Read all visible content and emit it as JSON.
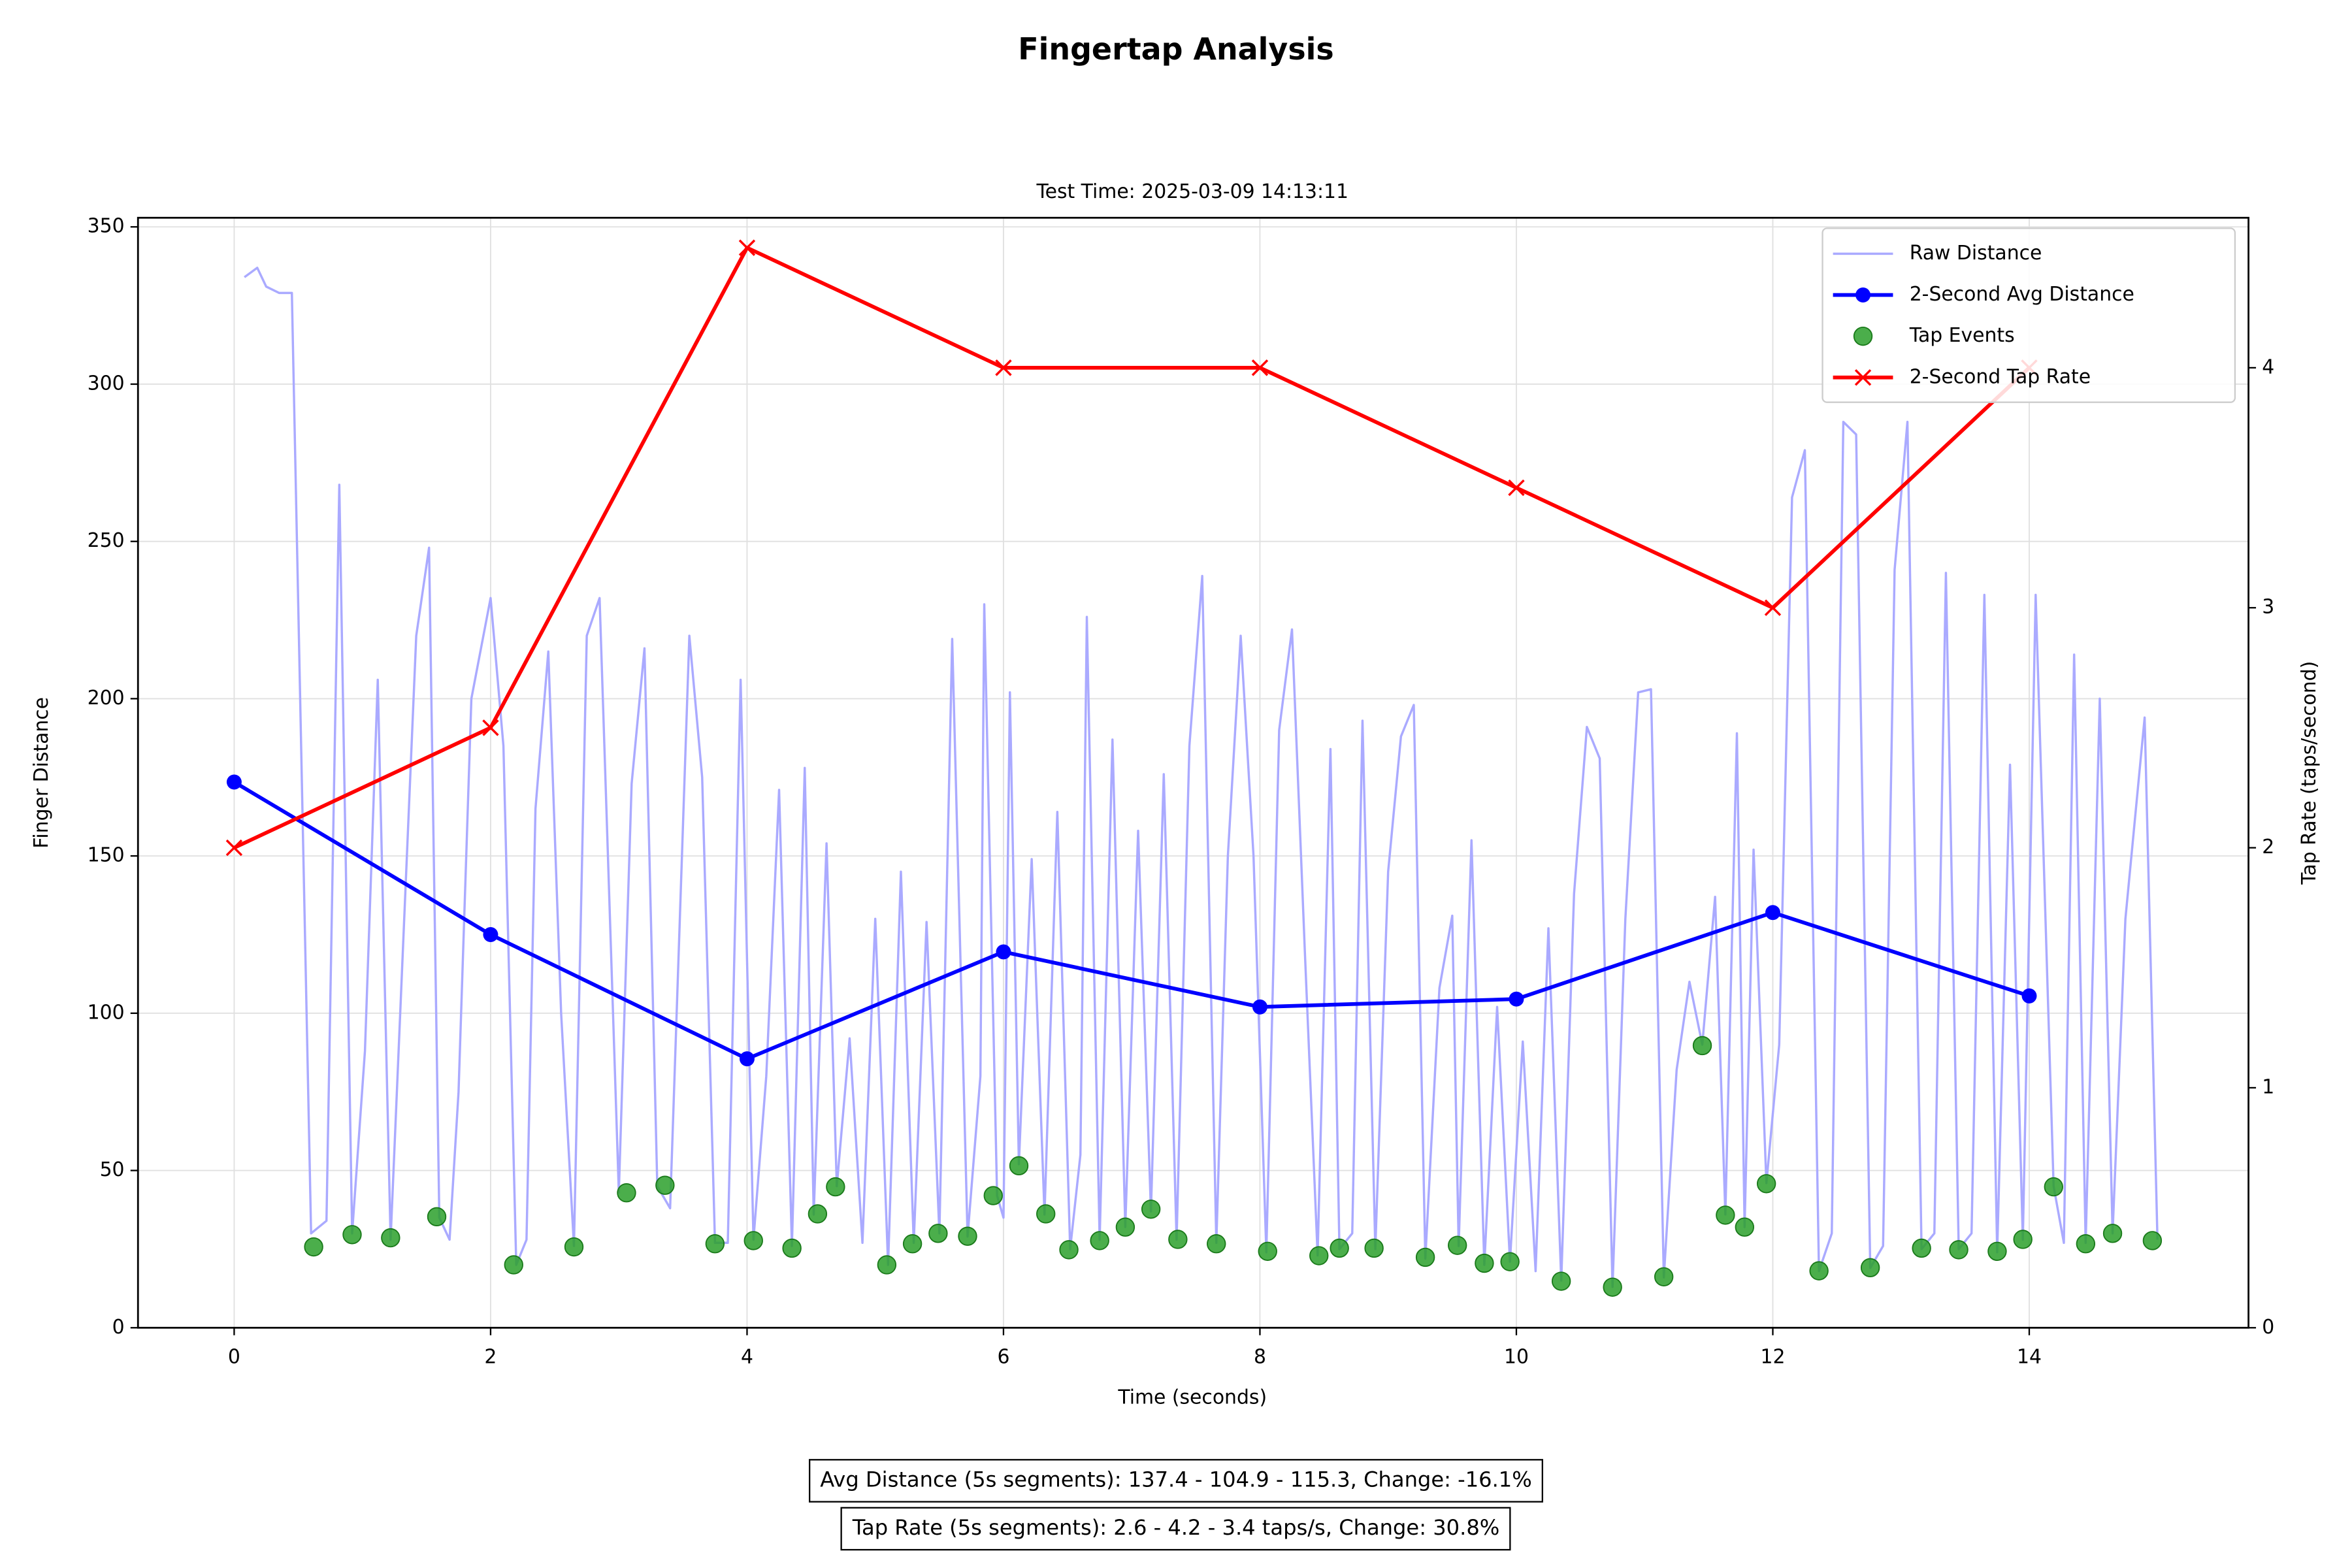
{
  "chart_data": {
    "type": "line",
    "title": "Fingertap Analysis",
    "subtitle": "Test Time: 2025-03-09 14:13:11",
    "xlabel": "Time (seconds)",
    "ylabel": "Finger Distance",
    "y2label": "Tap Rate (taps/second)",
    "xlim": [
      -0.75,
      15.71
    ],
    "xticks": [
      0,
      2,
      4,
      6,
      8,
      10,
      12,
      14
    ],
    "ylim": [
      0,
      352.9
    ],
    "yticks": [
      0,
      50,
      100,
      150,
      200,
      250,
      300,
      350
    ],
    "y2lim": [
      0,
      4.625
    ],
    "y2ticks": [
      0,
      1,
      2,
      3,
      4
    ],
    "ycolor": "#0000ff",
    "y2color": "#ff0000",
    "grid": true,
    "legend": "upper right",
    "series": [
      {
        "name": "Raw Distance",
        "style": "line",
        "color": "#aaaaff",
        "x": [
          0.08,
          0.18,
          0.25,
          0.35,
          0.45,
          0.6,
          0.72,
          0.82,
          0.92,
          1.02,
          1.12,
          1.22,
          1.42,
          1.52,
          1.6,
          1.68,
          1.75,
          1.85,
          2.0,
          2.1,
          2.2,
          2.28,
          2.35,
          2.45,
          2.55,
          2.65,
          2.75,
          2.85,
          3.0,
          3.1,
          3.2,
          3.3,
          3.4,
          3.55,
          3.65,
          3.75,
          3.85,
          3.95,
          4.05,
          4.15,
          4.25,
          4.35,
          4.45,
          4.52,
          4.62,
          4.7,
          4.8,
          4.9,
          5.0,
          5.1,
          5.2,
          5.3,
          5.4,
          5.5,
          5.6,
          5.72,
          5.82,
          5.85,
          5.95,
          6.0,
          6.05,
          6.12,
          6.22,
          6.32,
          6.42,
          6.52,
          6.6,
          6.65,
          6.75,
          6.85,
          6.95,
          7.05,
          7.15,
          7.25,
          7.35,
          7.45,
          7.55,
          7.66,
          7.75,
          7.85,
          7.95,
          8.05,
          8.15,
          8.25,
          8.35,
          8.45,
          8.55,
          8.62,
          8.72,
          8.8,
          8.9,
          9.0,
          9.1,
          9.2,
          9.29,
          9.4,
          9.5,
          9.55,
          9.65,
          9.75,
          9.85,
          9.95,
          10.05,
          10.15,
          10.25,
          10.35,
          10.45,
          10.55,
          10.65,
          10.75,
          10.85,
          10.95,
          11.05,
          11.15,
          11.25,
          11.35,
          11.45,
          11.55,
          11.63,
          11.72,
          11.78,
          11.85,
          11.95,
          12.05,
          12.15,
          12.25,
          12.36,
          12.46,
          12.55,
          12.65,
          12.76,
          12.86,
          12.95,
          13.05,
          13.16,
          13.26,
          13.35,
          13.45,
          13.55,
          13.65,
          13.75,
          13.85,
          13.95,
          14.05,
          14.19,
          14.27,
          14.35,
          14.44,
          14.55,
          14.65,
          14.75,
          14.9,
          15.0
        ],
        "values": [
          334,
          337,
          331,
          329,
          329,
          30,
          34,
          268,
          30,
          88,
          206,
          28,
          220,
          248,
          35,
          28,
          75,
          200,
          232,
          185,
          20,
          28,
          165,
          215,
          100,
          26,
          220,
          232,
          43,
          173,
          216,
          45,
          38,
          220,
          175,
          27,
          27,
          206,
          28,
          80,
          171,
          26,
          178,
          36,
          154,
          45,
          92,
          27,
          130,
          20,
          145,
          27,
          129,
          30,
          219,
          29,
          80,
          230,
          42,
          35,
          202,
          52,
          149,
          36,
          164,
          25,
          55,
          226,
          28,
          187,
          32,
          158,
          37,
          176,
          28,
          185,
          239,
          27,
          150,
          220,
          150,
          24,
          190,
          222,
          120,
          23,
          184,
          25,
          30,
          193,
          25,
          145,
          188,
          198,
          22,
          108,
          131,
          26,
          155,
          20,
          102,
          21,
          91,
          18,
          127,
          15,
          138,
          191,
          181,
          13,
          130,
          202,
          203,
          16,
          82,
          110,
          90,
          137,
          36,
          189,
          32,
          152,
          46,
          90,
          264,
          279,
          18,
          30,
          288,
          284,
          19,
          26,
          241,
          288,
          25,
          30,
          240,
          25,
          30,
          233,
          24,
          179,
          28,
          233,
          45,
          27,
          214,
          27,
          200,
          30,
          130,
          194,
          28
        ]
      },
      {
        "name": "2-Second Avg Distance",
        "style": "line-dot",
        "color": "#0000ff",
        "x": [
          0,
          2,
          4,
          6,
          8,
          10,
          12,
          14
        ],
        "values": [
          173.5,
          125,
          85.5,
          119.5,
          102,
          104.5,
          132,
          105.5
        ]
      },
      {
        "name": "Tap Events",
        "style": "scatter",
        "color": "#2ca02c",
        "x": [
          0.62,
          0.92,
          1.22,
          1.58,
          2.18,
          2.65,
          3.06,
          3.36,
          3.75,
          4.05,
          4.35,
          4.55,
          4.69,
          5.09,
          5.29,
          5.49,
          5.72,
          5.92,
          6.12,
          6.33,
          6.51,
          6.75,
          6.95,
          7.15,
          7.36,
          7.66,
          8.06,
          8.46,
          8.62,
          8.89,
          9.29,
          9.54,
          9.75,
          9.95,
          10.35,
          10.75,
          11.15,
          11.45,
          11.63,
          11.78,
          11.95,
          12.36,
          12.76,
          13.16,
          13.45,
          13.75,
          13.95,
          14.19,
          14.44,
          14.65,
          14.96
        ],
        "values": [
          25.7,
          29.6,
          28.6,
          35.3,
          20,
          25.7,
          42.9,
          45.3,
          26.7,
          27.7,
          25.3,
          36.2,
          44.8,
          20,
          26.7,
          30,
          29.1,
          42,
          51.5,
          36.2,
          24.8,
          27.7,
          32,
          37.7,
          28.1,
          26.7,
          24.3,
          22.9,
          25.3,
          25.3,
          22.4,
          26.2,
          20.5,
          21,
          14.8,
          12.9,
          16.2,
          89.7,
          35.8,
          32,
          45.8,
          18.1,
          19.1,
          25.3,
          24.8,
          24.3,
          28.1,
          44.8,
          26.7,
          30,
          27.7
        ]
      },
      {
        "name": "2-Second Tap Rate",
        "style": "line-x",
        "color": "#ff0000",
        "axis": "y2",
        "x": [
          0,
          2,
          4,
          6,
          8,
          10,
          12,
          14
        ],
        "values": [
          2,
          2.5,
          4.5,
          4,
          4,
          3.5,
          3,
          4
        ]
      }
    ],
    "annotations": [
      "Avg Distance (5s segments): 137.4 - 104.9 - 115.3, Change: -16.1%",
      "Tap Rate (5s segments): 2.6 - 4.2 - 3.4 taps/s, Change: 30.8%"
    ]
  }
}
